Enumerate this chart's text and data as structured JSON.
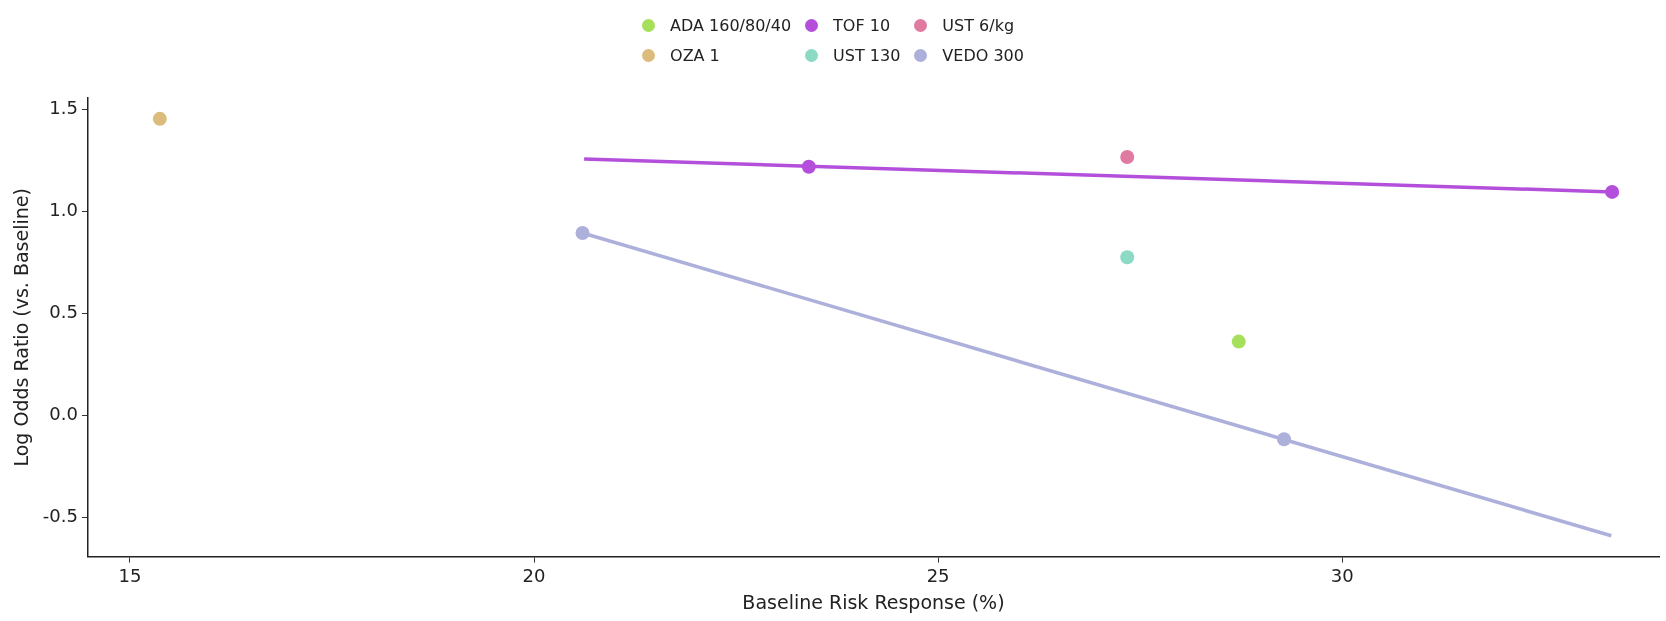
{
  "chart_data": {
    "type": "scatter",
    "xlabel": "Baseline Risk Response (%)",
    "ylabel": "Log Odds Ratio (vs. Baseline)",
    "xlim": [
      14.48,
      33.92
    ],
    "xticks": [
      15,
      20,
      25,
      30
    ],
    "ylim": [
      -0.69,
      1.556
    ],
    "yticks": [
      -0.5,
      {
        "value": 0,
        "label": "0.0"
      },
      0.5,
      {
        "value": 1,
        "label": "1.0"
      },
      1.5
    ],
    "grid": false,
    "legend": "top",
    "marker": "circle",
    "series": [
      {
        "name": "ADA 160/80/40",
        "color": "#a6e05a",
        "x": [
          28.72
        ],
        "values": [
          0.363
        ]
      },
      {
        "name": "OZA 1",
        "color": "#dcbc7c",
        "x": [
          15.37
        ],
        "values": [
          1.454
        ]
      },
      {
        "name": "TOF 10",
        "color": "#b44fdc",
        "x": [
          23.4,
          33.34
        ],
        "values": [
          1.219,
          1.096
        ]
      },
      {
        "name": "UST 130",
        "color": "#8cd9c4",
        "x": [
          27.34
        ],
        "values": [
          0.776
        ]
      },
      {
        "name": "UST 6/kg",
        "color": "#e07aa0",
        "x": [
          27.34
        ],
        "values": [
          1.267
        ]
      },
      {
        "name": "VEDO 300",
        "color": "#adb0db",
        "x": [
          20.6,
          29.28
        ],
        "values": [
          0.895,
          -0.115
        ]
      },
      {
        "type": "line",
        "color": "#b44fdc",
        "marker": "none",
        "x": [
          20.62,
          33.34
        ],
        "values": [
          1.257,
          1.096
        ]
      },
      {
        "type": "line",
        "color": "#adb0db",
        "marker": "none",
        "x": [
          20.6,
          33.33
        ],
        "values": [
          0.895,
          -0.588
        ]
      }
    ]
  }
}
